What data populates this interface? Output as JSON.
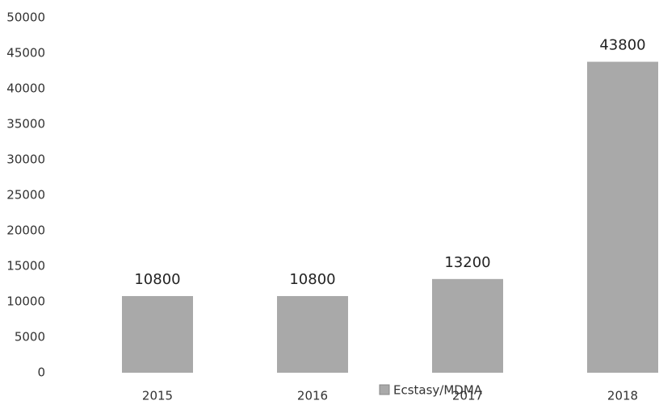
{
  "chart_data": {
    "type": "bar",
    "categories": [
      "2015",
      "2016",
      "2017",
      "2018"
    ],
    "series": [
      {
        "name": "Ecstasy/MDMA",
        "color": "#a9a9a9",
        "values": [
          10800,
          10800,
          13200,
          43800
        ]
      }
    ],
    "ylim": [
      0,
      50000
    ],
    "yticks": [
      0,
      5000,
      10000,
      15000,
      20000,
      25000,
      30000,
      35000,
      40000,
      45000,
      50000
    ],
    "grid": false,
    "legend": "bottom"
  }
}
